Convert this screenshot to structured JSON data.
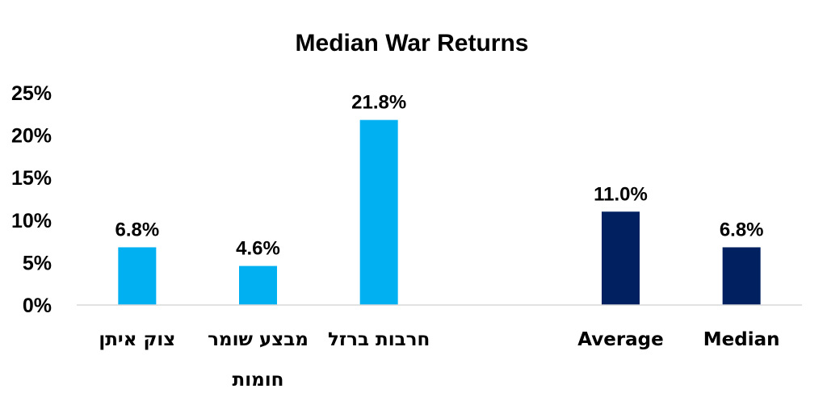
{
  "chart_data": {
    "type": "bar",
    "title": "Median War Returns",
    "xlabel": "",
    "ylabel": "",
    "ylim": [
      0,
      25
    ],
    "yticks": [
      "0%",
      "5%",
      "10%",
      "15%",
      "20%",
      "25%"
    ],
    "ytick_values": [
      0,
      5,
      10,
      15,
      20,
      25
    ],
    "grid": false,
    "categories": [
      [
        "צוק איתן"
      ],
      [
        "מבצע שומר",
        "חומות"
      ],
      [
        "חרבות ברזל"
      ],
      null,
      [
        "Average"
      ],
      [
        "Median"
      ]
    ],
    "values": [
      6.8,
      4.6,
      21.8,
      null,
      11.0,
      6.8
    ],
    "data_labels": [
      "6.8%",
      "4.6%",
      "21.8%",
      null,
      "11.0%",
      "6.8%"
    ],
    "bar_colors": [
      "#00b0f0",
      "#00b0f0",
      "#00b0f0",
      null,
      "#002060",
      "#002060"
    ],
    "axis_color": "#d9d9d9"
  }
}
